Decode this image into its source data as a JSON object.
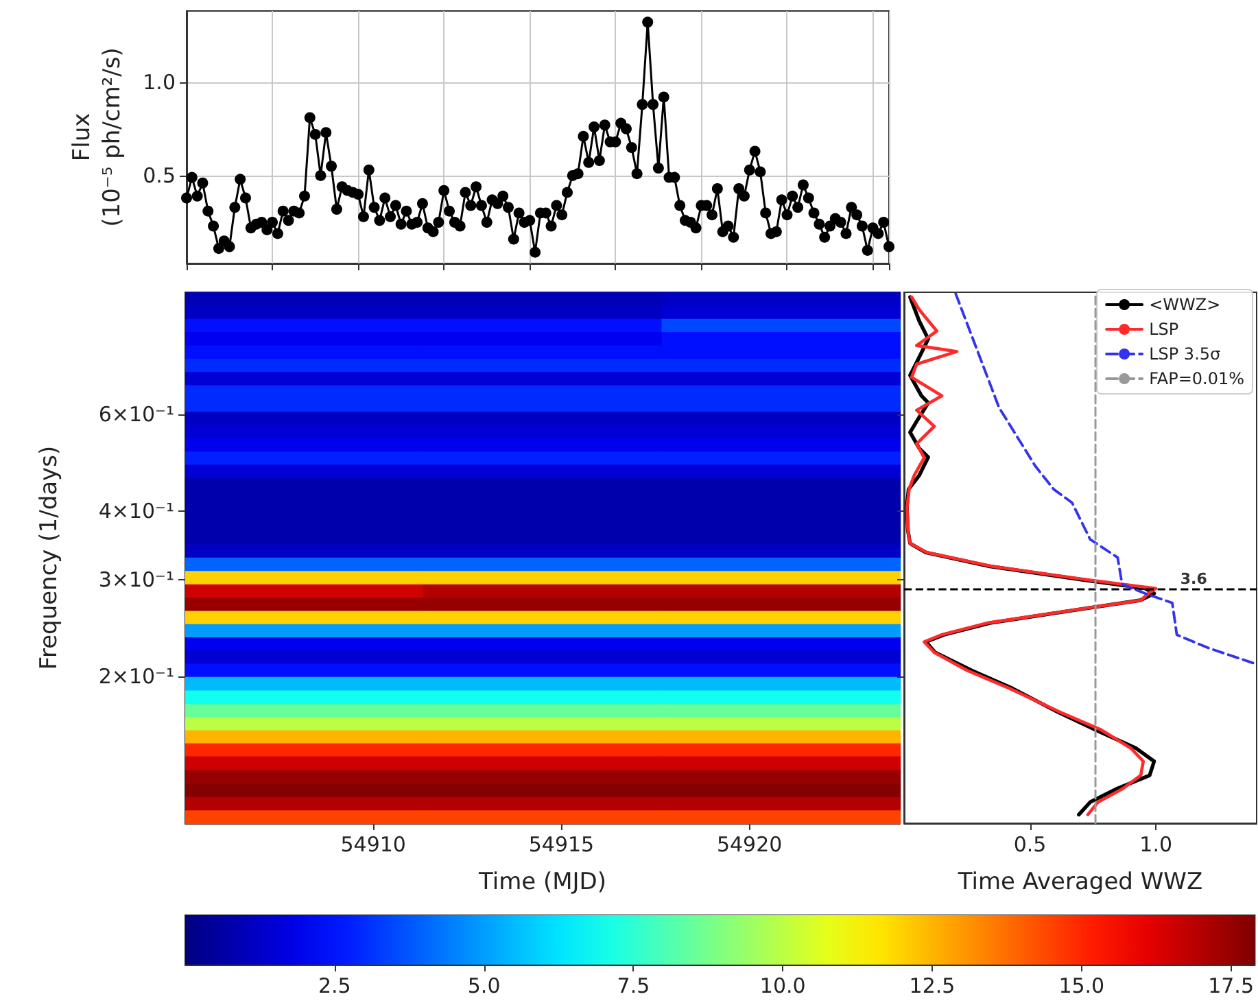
{
  "chart_data": [
    {
      "type": "line",
      "ylabel": "Flux\n(10⁻⁵ ph/cm²/s)",
      "categories": [
        null,
        null,
        null,
        null,
        null,
        null,
        null,
        null,
        null,
        null,
        null,
        null,
        null,
        null,
        null,
        null,
        null,
        null,
        null,
        null,
        null,
        null,
        null,
        null,
        null,
        null,
        null,
        null,
        null,
        null,
        null,
        null,
        null,
        null,
        null,
        null,
        null,
        null,
        null,
        null,
        null,
        null,
        null,
        null,
        null,
        null,
        null,
        null,
        null,
        null,
        null,
        null,
        null,
        null,
        null,
        null,
        null,
        null,
        null,
        null,
        null,
        null,
        null,
        null,
        null,
        null,
        null,
        null,
        null,
        null,
        null,
        null,
        null,
        null,
        null,
        null,
        null,
        null,
        null,
        null,
        null,
        null,
        null,
        null,
        null,
        null,
        null,
        null,
        null,
        null,
        null,
        null,
        null,
        null,
        null,
        null,
        null,
        null,
        null,
        null,
        null,
        null,
        null,
        null,
        null,
        null,
        null,
        null,
        null,
        null,
        null,
        null,
        null,
        null,
        null,
        null,
        null,
        null,
        null,
        null,
        null,
        null,
        null,
        null,
        null,
        null,
        null,
        null,
        null,
        null,
        null,
        null
      ],
      "series": [
        {
          "color": "#000000",
          "values": [
            0.38,
            0.49,
            0.39,
            0.46,
            0.31,
            0.23,
            0.11,
            0.15,
            0.12,
            0.33,
            0.48,
            0.38,
            0.22,
            0.24,
            0.25,
            0.21,
            0.25,
            0.19,
            0.31,
            0.26,
            0.31,
            0.3,
            0.39,
            0.81,
            0.72,
            0.5,
            0.73,
            0.55,
            0.32,
            0.44,
            0.42,
            0.41,
            0.4,
            0.28,
            0.53,
            0.33,
            0.26,
            0.38,
            0.28,
            0.34,
            0.24,
            0.31,
            0.24,
            0.25,
            0.35,
            0.22,
            0.2,
            0.25,
            0.42,
            0.31,
            0.25,
            0.23,
            0.41,
            0.34,
            0.44,
            0.34,
            0.25,
            0.37,
            0.35,
            0.39,
            0.33,
            0.16,
            0.3,
            0.25,
            0.26,
            0.09,
            0.3,
            0.3,
            0.23,
            0.34,
            0.29,
            0.41,
            0.5,
            0.51,
            0.71,
            0.57,
            0.76,
            0.58,
            0.77,
            0.68,
            0.68,
            0.78,
            0.75,
            0.65,
            0.51,
            0.88,
            1.32,
            0.88,
            0.54,
            0.92,
            0.49,
            0.49,
            0.34,
            0.26,
            0.25,
            0.22,
            0.34,
            0.34,
            0.29,
            0.43,
            0.2,
            0.23,
            0.17,
            0.43,
            0.39,
            0.53,
            0.63,
            0.52,
            0.3,
            0.19,
            0.2,
            0.37,
            0.29,
            0.39,
            0.33,
            0.45,
            0.38,
            0.3,
            0.24,
            0.17,
            0.23,
            0.27,
            0.25,
            0.19,
            0.33,
            0.29,
            0.23,
            0.1,
            0.22,
            0.19,
            0.25,
            0.12
          ]
        }
      ],
      "ylim": [
        0.03,
        1.38
      ],
      "yticks": [
        0.5,
        {
          "value": 1,
          "label": "1.0"
        }
      ],
      "grid": true,
      "marker": "circle"
    },
    {
      "type": "heatmap",
      "xlabel": "Time (MJD)",
      "ylabel": "Frequency (1/days)",
      "x": [
        54908.17,
        54914.5,
        54920.83
      ],
      "y": [
        0.973,
        0.92,
        0.87,
        0.823,
        0.778,
        0.736,
        0.696,
        0.659,
        0.623,
        0.589,
        0.557,
        0.527,
        0.499,
        0.472,
        0.446,
        0.422,
        0.399,
        0.378,
        0.357,
        0.338,
        0.32,
        0.302,
        0.286,
        0.27,
        0.256,
        0.242,
        0.229,
        0.217,
        0.205,
        0.194,
        0.183,
        0.173,
        0.164,
        0.155,
        0.147,
        0.139,
        0.131,
        0.124,
        0.117,
        0.111
      ],
      "cells": [
        [
          1.0,
          1.0,
          1.2
        ],
        [
          1.2,
          1.2,
          1.5
        ],
        [
          2.5,
          2.5,
          3.5
        ],
        [
          2.0,
          2.0,
          2.5
        ],
        [
          2.5,
          2.5,
          2.5
        ],
        [
          3.0,
          3.0,
          3.0
        ],
        [
          1.5,
          1.5,
          1.5
        ],
        [
          3.0,
          3.0,
          3.0
        ],
        [
          3.0,
          3.0,
          3.0
        ],
        [
          1.2,
          1.2,
          1.2
        ],
        [
          1.5,
          1.5,
          1.5
        ],
        [
          2.0,
          2.0,
          2.0
        ],
        [
          2.8,
          2.8,
          2.8
        ],
        [
          1.5,
          1.5,
          1.5
        ],
        [
          0.8,
          0.8,
          0.8
        ],
        [
          0.8,
          0.8,
          0.8
        ],
        [
          0.8,
          0.8,
          0.8
        ],
        [
          0.8,
          0.8,
          0.8
        ],
        [
          0.8,
          0.8,
          0.8
        ],
        [
          1.2,
          1.2,
          1.2
        ],
        [
          4.0,
          4.0,
          4.0
        ],
        [
          12.0,
          12.0,
          12.0
        ],
        [
          16.5,
          17.0,
          17.0
        ],
        [
          17.5,
          17.5,
          17.5
        ],
        [
          12.0,
          12.0,
          12.0
        ],
        [
          5.0,
          5.0,
          5.0
        ],
        [
          2.0,
          2.0,
          2.0
        ],
        [
          1.5,
          1.5,
          1.5
        ],
        [
          2.5,
          2.5,
          2.5
        ],
        [
          5.5,
          5.5,
          5.5
        ],
        [
          7.0,
          7.0,
          7.0
        ],
        [
          8.5,
          8.5,
          8.5
        ],
        [
          10.0,
          10.0,
          10.0
        ],
        [
          12.5,
          12.5,
          12.5
        ],
        [
          15.0,
          15.0,
          15.0
        ],
        [
          16.5,
          16.5,
          16.5
        ],
        [
          17.5,
          17.5,
          17.5
        ],
        [
          17.8,
          17.8,
          17.8
        ],
        [
          17.0,
          17.0,
          17.0
        ],
        [
          14.5,
          14.5,
          14.5
        ]
      ],
      "xlim": [
        54905,
        54924
      ],
      "xticks": [
        54910,
        54915,
        54920
      ],
      "ylim": [
        0.108,
        1.0
      ],
      "yticks": [
        {
          "value": 0.2,
          "label": "2×10⁻¹"
        },
        {
          "value": 0.3,
          "label": "3×10⁻¹"
        },
        {
          "value": 0.4,
          "label": "4×10⁻¹"
        },
        {
          "value": 0.6,
          "label": "6×10⁻¹"
        }
      ],
      "log": "y",
      "clim": [
        0,
        17.9
      ],
      "cticks": [
        2.5,
        {
          "value": 5,
          "label": "5.0"
        },
        7.5,
        {
          "value": 10,
          "label": "10.0"
        },
        12.5,
        {
          "value": 15,
          "label": "15.0"
        },
        17.5
      ]
    },
    {
      "type": "line",
      "xlabel": "Time Averaged WWZ",
      "series": [
        {
          "name": "<WWZ>",
          "color": "#000000",
          "x": [
            0.024,
            0.06,
            0.096,
            0.051,
            0.024,
            0.069,
            0.096,
            0.051,
            0.024,
            0.06,
            0.096,
            0.06,
            0.018,
            0.011,
            0.015,
            0.024,
            0.087,
            0.341,
            0.703,
            0.957,
            0.993,
            0.938,
            0.703,
            0.341,
            0.159,
            0.087,
            0.123,
            0.268,
            0.431,
            0.612,
            0.757,
            0.92,
            0.993,
            0.975,
            0.848,
            0.739,
            0.694
          ],
          "values": [
            0.98,
            0.887,
            0.822,
            0.747,
            0.706,
            0.648,
            0.629,
            0.583,
            0.556,
            0.52,
            0.501,
            0.464,
            0.438,
            0.406,
            0.369,
            0.349,
            0.336,
            0.317,
            0.3,
            0.289,
            0.283,
            0.275,
            0.265,
            0.25,
            0.238,
            0.231,
            0.221,
            0.205,
            0.19,
            0.172,
            0.16,
            0.148,
            0.14,
            0.132,
            0.125,
            0.118,
            0.112
          ]
        },
        {
          "name": "LSP",
          "color": "#ff2a2a",
          "x": [
            0.03,
            0.06,
            0.13,
            0.05,
            0.21,
            0.05,
            0.03,
            0.15,
            0.05,
            0.12,
            0.05,
            0.08,
            0.04,
            0.02,
            0.012,
            0.015,
            0.024,
            0.09,
            0.35,
            0.72,
            1.0,
            0.97,
            0.94,
            0.7,
            0.33,
            0.15,
            0.08,
            0.12,
            0.25,
            0.42,
            0.62,
            0.78,
            0.9,
            0.95,
            0.94,
            0.87,
            0.77,
            0.73
          ],
          "values": [
            0.98,
            0.93,
            0.85,
            0.8,
            0.78,
            0.74,
            0.7,
            0.648,
            0.61,
            0.57,
            0.53,
            0.5,
            0.464,
            0.438,
            0.406,
            0.369,
            0.349,
            0.336,
            0.317,
            0.3,
            0.289,
            0.283,
            0.275,
            0.265,
            0.25,
            0.238,
            0.231,
            0.221,
            0.205,
            0.19,
            0.172,
            0.16,
            0.148,
            0.14,
            0.132,
            0.125,
            0.118,
            0.112
          ]
        },
        {
          "name": "LSP 3.5σ",
          "color": "#3333ee",
          "line_style": "dashed",
          "x": [
            0.205,
            0.377,
            0.522,
            0.594,
            0.667,
            0.739,
            0.848,
            0.866,
            0.957,
            1.065,
            1.083,
            1.21,
            1.391
          ],
          "values": [
            0.994,
            0.617,
            0.482,
            0.438,
            0.414,
            0.355,
            0.329,
            0.294,
            0.283,
            0.272,
            0.238,
            0.225,
            0.211
          ]
        },
        {
          "name": "FAP=0.01%",
          "color": "#999999",
          "line_style": "dashed",
          "x": [
            0.76,
            0.76
          ],
          "values": [
            0.108,
            1.0
          ]
        }
      ],
      "xlim": [
        0,
        1.4
      ],
      "xticks": [
        0.5,
        {
          "value": 1,
          "label": "1.0"
        }
      ],
      "ylim": [
        0.108,
        1.0
      ],
      "yticks": [
        {
          "value": 0.2,
          "label": null
        },
        {
          "value": 0.3,
          "label": null
        },
        {
          "value": 0.4,
          "label": null
        },
        {
          "value": 0.6,
          "label": null
        }
      ],
      "log": "y",
      "tick_labels": "x",
      "legend": "top right",
      "ref_lines": [
        {
          "axis": "y",
          "value": 0.288,
          "color": "#000000",
          "line_style": "dashed"
        }
      ],
      "annotations": [
        {
          "text": "3.6",
          "x": 1.15,
          "y": 0.288
        }
      ]
    }
  ]
}
